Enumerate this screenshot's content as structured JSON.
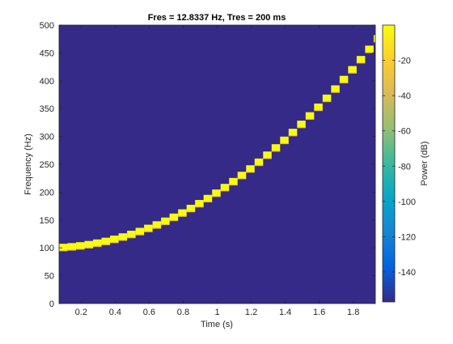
{
  "chart_data": {
    "type": "heatmap",
    "title": "Fres = 12.8337 Hz, Tres = 200 ms",
    "xlabel": "Time (s)",
    "ylabel": "Frequency (Hz)",
    "colorbar_label": "Power (dB)",
    "xlim": [
      0.07,
      1.93
    ],
    "ylim": [
      0,
      500
    ],
    "xticks": [
      0.2,
      0.4,
      0.6,
      0.8,
      1,
      1.2,
      1.4,
      1.6,
      1.8
    ],
    "yticks": [
      0,
      50,
      100,
      150,
      200,
      250,
      300,
      350,
      400,
      450,
      500
    ],
    "clim": [
      -157,
      0
    ],
    "cticks": [
      -140,
      -120,
      -100,
      -80,
      -60,
      -40,
      -20
    ],
    "colormap": "parula",
    "background_color": "#352a87",
    "grid": false,
    "ridge": {
      "description": "quadratic chirp",
      "f0_hz": 100,
      "f_end_hz": 470,
      "t_end_s": 1.93,
      "bin_width_hz": 12.8337,
      "time_step_s": 0.05,
      "peak_db": -3
    }
  }
}
